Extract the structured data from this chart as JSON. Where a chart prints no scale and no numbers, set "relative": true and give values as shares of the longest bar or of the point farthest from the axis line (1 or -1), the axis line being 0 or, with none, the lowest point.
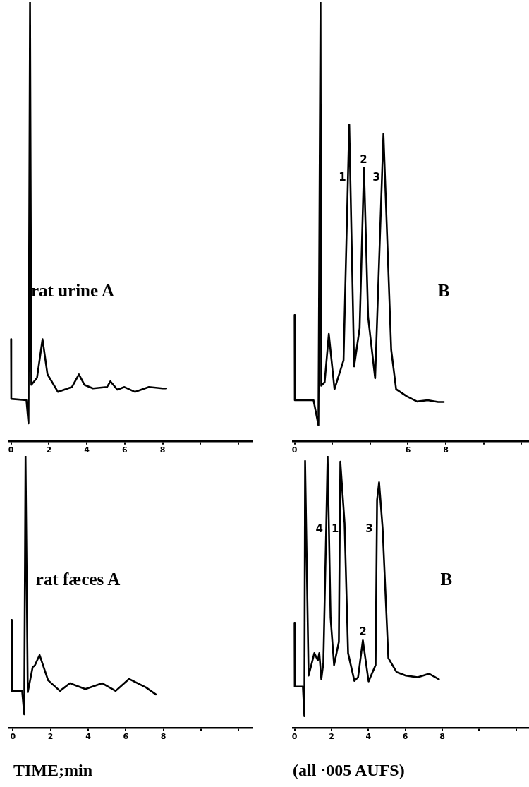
{
  "chart_data": [
    {
      "type": "line",
      "title": "rat urine A",
      "relative": true,
      "marker": "none",
      "line_style": "solid",
      "xlim": [
        -0.1,
        12.7
      ],
      "xticks": [
        0,
        2,
        4,
        6,
        8,
        {
          "value": 10,
          "label": null
        },
        {
          "value": 12,
          "label": null
        }
      ],
      "series": [
        {
          "color": "#000000",
          "x": [
            0,
            0.01,
            0.81,
            0.92,
            1.0,
            1.07,
            1.37,
            1.66,
            1.92,
            2.47,
            3.21,
            3.58,
            3.87,
            4.32,
            5.06,
            5.24,
            5.61,
            5.98,
            6.53,
            7.27,
            8.0,
            8.19
          ],
          "values": [
            0.232,
            0.096,
            0.093,
            0.04,
            1,
            0.128,
            0.144,
            0.232,
            0.152,
            0.112,
            0.123,
            0.152,
            0.128,
            0.12,
            0.123,
            0.136,
            0.117,
            0.123,
            0.112,
            0.123,
            0.12,
            0.12
          ]
        }
      ]
    },
    {
      "type": "line",
      "title": "B",
      "relative": true,
      "marker": "none",
      "line_style": "solid",
      "xlim": [
        -0.1,
        12.4
      ],
      "xticks": [
        0,
        {
          "value": 2,
          "label": null
        },
        {
          "value": 4,
          "label": null
        },
        6,
        8,
        {
          "value": 10,
          "label": null
        },
        {
          "value": 12,
          "label": null
        }
      ],
      "annotations": [
        "1",
        "2",
        "3"
      ],
      "series": [
        {
          "color": "#000000",
          "x": [
            0,
            0.01,
            1.0,
            1.26,
            1.37,
            1.41,
            1.59,
            1.81,
            2.11,
            2.59,
            2.89,
            3.15,
            3.44,
            3.67,
            3.89,
            4.26,
            4.7,
            5.11,
            5.37,
            5.93,
            6.48,
            7.04,
            7.59,
            7.89
          ],
          "values": [
            0.287,
            0.093,
            0.093,
            0.036,
            1,
            0.126,
            0.134,
            0.244,
            0.118,
            0.184,
            0.721,
            0.17,
            0.257,
            0.623,
            0.282,
            0.143,
            0.7,
            0.208,
            0.118,
            0.102,
            0.09,
            0.093,
            0.089,
            0.089
          ]
        }
      ]
    },
    {
      "type": "line",
      "title": "rat fæces A",
      "xlabel": "TIME;min",
      "relative": true,
      "marker": "none",
      "line_style": "solid",
      "xlim": [
        -0.2,
        12.7
      ],
      "xticks": [
        0,
        2,
        4,
        6,
        8,
        {
          "value": 10,
          "label": null
        },
        {
          "value": 12,
          "label": null
        }
      ],
      "series": [
        {
          "color": "#000000",
          "x": [
            -0.07,
            -0.06,
            0.49,
            0.6,
            0.67,
            0.79,
            1.05,
            1.16,
            1.42,
            1.87,
            2.5,
            3.03,
            3.85,
            4.75,
            5.46,
            6.17,
            7.07,
            7.6
          ],
          "values": [
            0.396,
            0.135,
            0.135,
            0.049,
            1,
            0.13,
            0.223,
            0.228,
            0.267,
            0.174,
            0.135,
            0.163,
            0.142,
            0.163,
            0.135,
            0.179,
            0.148,
            0.122
          ]
        }
      ]
    },
    {
      "type": "line",
      "title": "B",
      "relative": true,
      "marker": "none",
      "line_style": "solid",
      "xlim": [
        -0.1,
        12.7
      ],
      "xticks": [
        0,
        2,
        4,
        6,
        8,
        {
          "value": 10,
          "label": null
        },
        {
          "value": 12,
          "label": null
        }
      ],
      "annotations": [
        "4",
        "1",
        "3",
        "2",
        "(all ·005 AUFS)"
      ],
      "series": [
        {
          "color": "#000000",
          "x": [
            0,
            0.01,
            0.45,
            0.53,
            0.57,
            0.76,
            1.07,
            1.26,
            1.34,
            1.45,
            1.56,
            1.72,
            1.79,
            1.95,
            2.14,
            2.4,
            2.48,
            2.71,
            2.9,
            3.24,
            3.44,
            3.7,
            4.01,
            4.39,
            4.47,
            4.58,
            4.77,
            5.08,
            5.53,
            6.03,
            6.68,
            7.29,
            7.82
          ],
          "values": [
            0.386,
            0.151,
            0.151,
            0.042,
            0.982,
            0.191,
            0.274,
            0.248,
            0.274,
            0.178,
            0.238,
            0.752,
            1,
            0.405,
            0.23,
            0.316,
            0.979,
            0.752,
            0.274,
            0.172,
            0.185,
            0.321,
            0.17,
            0.23,
            0.838,
            0.903,
            0.734,
            0.256,
            0.204,
            0.191,
            0.185,
            0.198,
            0.178
          ]
        }
      ]
    }
  ]
}
